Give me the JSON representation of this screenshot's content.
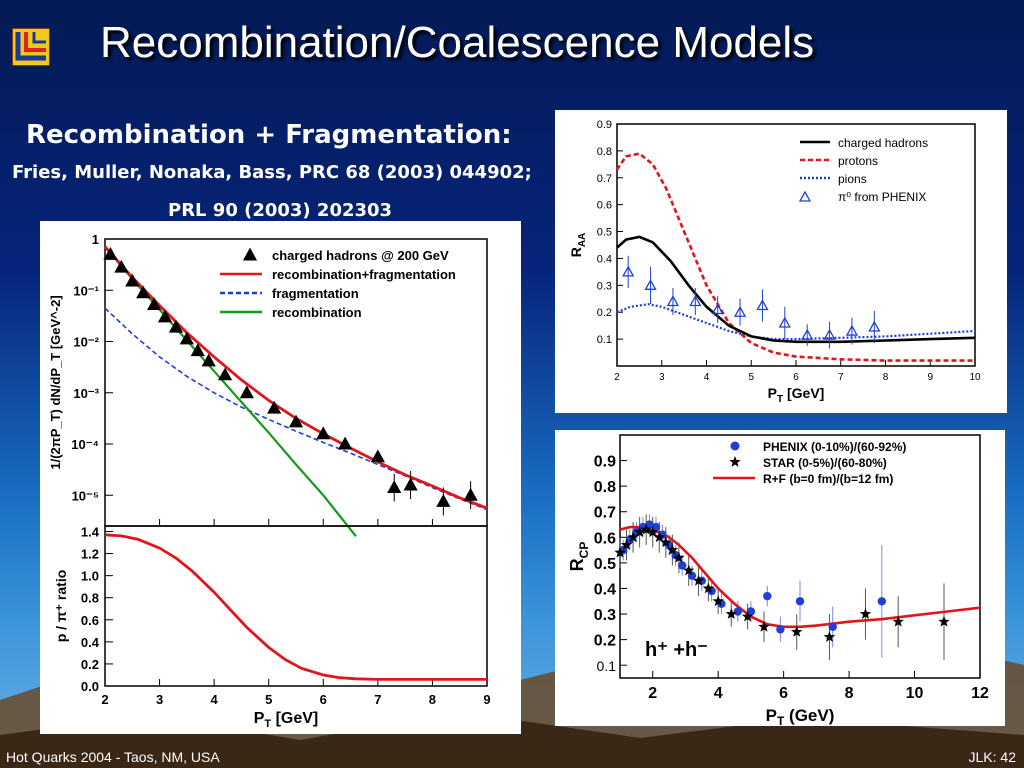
{
  "slide": {
    "title": "Recombination/Coalescence Models",
    "subtitle": "Recombination + Fragmentation:",
    "ref_line1": "Fries, Muller, Nonaka, Bass, PRC 68 (2003) 044902;",
    "ref_line2": "PRL 90 (2003) 202303",
    "footer_left": "Hot Quarks 2004 - Taos, NM, USA",
    "footer_right": "JLK: 42"
  },
  "colors": {
    "red": "#e0161b",
    "blue": "#1f3fd6",
    "green": "#139a1a",
    "black": "#000000"
  },
  "chart_data": [
    {
      "id": "spectrum",
      "type": "line",
      "xlabel": "P",
      "xlabel_sub": "T",
      "xlabel_unit": " [GeV]",
      "ylabel": "1/(2πP_T) dN/dP_T [GeV^-2]",
      "xlim": [
        2,
        9
      ],
      "ylim_log": [
        -5.6,
        0
      ],
      "yscale": "log",
      "xticks": [
        2,
        3,
        4,
        5,
        6,
        7,
        8,
        9
      ],
      "yticks": [
        "1",
        "10⁻¹",
        "10⁻²",
        "10⁻³",
        "10⁻⁴",
        "10⁻⁵"
      ],
      "legend": [
        "charged hadrons @ 200 GeV",
        "recombination+fragmentation",
        "fragmentation",
        "recombination"
      ],
      "series": [
        {
          "name": "charged hadrons @ 200 GeV",
          "style": "markers",
          "x": [
            2.1,
            2.3,
            2.5,
            2.7,
            2.9,
            3.1,
            3.3,
            3.5,
            3.7,
            3.9,
            4.2,
            4.6,
            5.1,
            5.5,
            6.0,
            6.4,
            7.0,
            7.3,
            7.6,
            8.2,
            8.7
          ],
          "y": [
            -0.3,
            -0.55,
            -0.82,
            -1.05,
            -1.28,
            -1.52,
            -1.72,
            -1.95,
            -2.18,
            -2.38,
            -2.65,
            -3.0,
            -3.3,
            -3.57,
            -3.8,
            -4.0,
            -4.25,
            -4.85,
            -4.8,
            -5.12,
            -5.0
          ]
        },
        {
          "name": "recombination+fragmentation",
          "style": "line",
          "x": [
            2.0,
            2.5,
            3.0,
            3.5,
            4.0,
            4.5,
            5.0,
            5.5,
            6.0,
            6.5,
            7.0,
            7.5,
            8.0,
            8.5,
            9.0
          ],
          "y": [
            -0.15,
            -0.75,
            -1.3,
            -1.83,
            -2.3,
            -2.75,
            -3.15,
            -3.5,
            -3.8,
            -4.08,
            -4.35,
            -4.6,
            -4.82,
            -5.05,
            -5.25
          ]
        },
        {
          "name": "fragmentation",
          "style": "dash",
          "x": [
            2.0,
            2.5,
            3.0,
            3.5,
            4.0,
            4.5,
            5.0,
            5.5,
            6.0,
            6.5,
            7.0,
            7.5,
            8.0,
            8.5,
            9.0
          ],
          "y": [
            -1.35,
            -1.85,
            -2.3,
            -2.68,
            -3.0,
            -3.28,
            -3.52,
            -3.75,
            -3.97,
            -4.18,
            -4.4,
            -4.62,
            -4.85,
            -5.07,
            -5.28
          ]
        },
        {
          "name": "recombination",
          "style": "line",
          "x": [
            2.0,
            2.5,
            3.0,
            3.5,
            4.0,
            4.5,
            5.0,
            5.5,
            6.0,
            6.6
          ],
          "y": [
            -0.15,
            -0.78,
            -1.38,
            -1.98,
            -2.58,
            -3.18,
            -3.78,
            -4.4,
            -5.0,
            -5.8
          ]
        }
      ]
    },
    {
      "id": "ratio",
      "type": "line",
      "xlabel": "P",
      "xlabel_sub": "T",
      "xlabel_unit": " [GeV]",
      "ylabel": "p / π⁺ ratio",
      "xlim": [
        2,
        9
      ],
      "ylim": [
        0,
        1.45
      ],
      "xticks": [
        2,
        3,
        4,
        5,
        6,
        7,
        8,
        9
      ],
      "yticks": [
        0.0,
        0.2,
        0.4,
        0.6,
        0.8,
        1.0,
        1.2,
        1.4
      ],
      "series": [
        {
          "name": "p/π⁺",
          "style": "line",
          "x": [
            2.0,
            2.3,
            2.6,
            3.0,
            3.3,
            3.6,
            4.0,
            4.3,
            4.6,
            5.0,
            5.3,
            5.6,
            6.0,
            6.3,
            6.6,
            7.0,
            8.0,
            9.0
          ],
          "y": [
            1.37,
            1.36,
            1.33,
            1.25,
            1.16,
            1.04,
            0.85,
            0.69,
            0.53,
            0.35,
            0.24,
            0.16,
            0.1,
            0.075,
            0.065,
            0.06,
            0.06,
            0.06
          ]
        }
      ]
    },
    {
      "id": "raa",
      "type": "line",
      "xlabel": "P",
      "xlabel_sub": "T",
      "xlabel_unit": " [GeV]",
      "ylabel": "R",
      "ylabel_sub": "AA",
      "xlim": [
        2,
        10
      ],
      "ylim": [
        0,
        0.9
      ],
      "xticks": [
        2,
        3,
        4,
        5,
        6,
        7,
        8,
        9,
        10
      ],
      "yticks": [
        0.1,
        0.2,
        0.3,
        0.4,
        0.5,
        0.6,
        0.7,
        0.8,
        0.9
      ],
      "legend": [
        "charged hadrons",
        "protons",
        "pions",
        "π⁰ from PHENIX"
      ],
      "series": [
        {
          "name": "charged hadrons",
          "style": "line",
          "x": [
            2.0,
            2.2,
            2.5,
            2.8,
            3.2,
            3.6,
            4.0,
            4.5,
            5.0,
            5.5,
            6.0,
            7.0,
            8.0,
            9.0,
            10.0
          ],
          "y": [
            0.44,
            0.47,
            0.48,
            0.46,
            0.39,
            0.3,
            0.22,
            0.15,
            0.11,
            0.095,
            0.09,
            0.09,
            0.095,
            0.1,
            0.105
          ]
        },
        {
          "name": "protons",
          "style": "dash",
          "x": [
            2.0,
            2.2,
            2.5,
            2.8,
            3.1,
            3.5,
            4.0,
            4.5,
            5.0,
            5.5,
            6.0,
            7.0,
            8.0,
            9.0,
            10.0
          ],
          "y": [
            0.73,
            0.78,
            0.79,
            0.75,
            0.66,
            0.5,
            0.3,
            0.16,
            0.085,
            0.05,
            0.035,
            0.025,
            0.02,
            0.02,
            0.02
          ]
        },
        {
          "name": "pions",
          "style": "dot",
          "x": [
            2.0,
            2.3,
            2.7,
            3.0,
            3.5,
            4.0,
            4.5,
            5.0,
            5.5,
            6.0,
            7.0,
            8.0,
            9.0,
            10.0
          ],
          "y": [
            0.2,
            0.22,
            0.23,
            0.22,
            0.19,
            0.16,
            0.13,
            0.11,
            0.1,
            0.1,
            0.105,
            0.11,
            0.12,
            0.13
          ]
        },
        {
          "name": "π⁰ from PHENIX",
          "style": "triangles",
          "x": [
            2.25,
            2.75,
            3.25,
            3.75,
            4.25,
            4.75,
            5.25,
            5.75,
            6.25,
            6.75,
            7.25,
            7.75
          ],
          "y": [
            0.35,
            0.3,
            0.24,
            0.24,
            0.21,
            0.2,
            0.225,
            0.16,
            0.115,
            0.115,
            0.13,
            0.145
          ],
          "err": [
            0.06,
            0.07,
            0.05,
            0.05,
            0.05,
            0.05,
            0.06,
            0.06,
            0.04,
            0.05,
            0.05,
            0.06
          ]
        }
      ]
    },
    {
      "id": "rcp",
      "type": "scatter",
      "xlabel": "P",
      "xlabel_sub": "T",
      "xlabel_unit": " (GeV)",
      "ylabel": "R",
      "ylabel_sub": "CP",
      "xlim": [
        1,
        12
      ],
      "ylim": [
        0.05,
        1.0
      ],
      "xticks": [
        2,
        4,
        6,
        8,
        10,
        12
      ],
      "yticks": [
        0.1,
        0.2,
        0.3,
        0.4,
        0.5,
        0.6,
        0.7,
        0.8,
        0.9
      ],
      "annotation": "h⁺ +h⁻",
      "legend": [
        "PHENIX (0-10%)/(60-92%)",
        "STAR (0-5%)/(60-80%)",
        "R+F (b=0 fm)/(b=12 fm)"
      ],
      "series": [
        {
          "name": "PHENIX (0-10%)/(60-92%)",
          "style": "dots",
          "x": [
            1.1,
            1.3,
            1.5,
            1.7,
            1.9,
            2.1,
            2.3,
            2.5,
            2.7,
            2.9,
            3.2,
            3.5,
            3.8,
            4.1,
            4.6,
            5.0,
            5.5,
            5.9,
            6.5,
            7.5,
            9.0
          ],
          "y": [
            0.55,
            0.59,
            0.62,
            0.64,
            0.65,
            0.64,
            0.61,
            0.57,
            0.53,
            0.49,
            0.45,
            0.43,
            0.39,
            0.34,
            0.31,
            0.31,
            0.37,
            0.24,
            0.35,
            0.25,
            0.35
          ],
          "err": [
            0.04,
            0.04,
            0.04,
            0.04,
            0.04,
            0.04,
            0.04,
            0.04,
            0.04,
            0.04,
            0.04,
            0.04,
            0.04,
            0.04,
            0.04,
            0.04,
            0.04,
            0.05,
            0.08,
            0.08,
            0.22
          ]
        },
        {
          "name": "STAR (0-5%)/(60-80%)",
          "style": "stars",
          "x": [
            1.0,
            1.2,
            1.4,
            1.6,
            1.8,
            2.0,
            2.2,
            2.4,
            2.6,
            2.8,
            3.1,
            3.4,
            3.7,
            4.0,
            4.4,
            4.9,
            5.4,
            6.4,
            7.4,
            8.5,
            9.5,
            10.9
          ],
          "y": [
            0.54,
            0.57,
            0.6,
            0.62,
            0.63,
            0.62,
            0.6,
            0.58,
            0.55,
            0.52,
            0.47,
            0.43,
            0.4,
            0.35,
            0.3,
            0.29,
            0.25,
            0.23,
            0.21,
            0.3,
            0.27,
            0.27
          ],
          "err": [
            0.06,
            0.06,
            0.06,
            0.06,
            0.06,
            0.06,
            0.06,
            0.06,
            0.06,
            0.06,
            0.06,
            0.06,
            0.05,
            0.05,
            0.05,
            0.05,
            0.06,
            0.07,
            0.09,
            0.1,
            0.1,
            0.15
          ]
        },
        {
          "name": "R+F (b=0 fm)/(b=12 fm)",
          "style": "line",
          "x": [
            1.0,
            1.3,
            1.6,
            1.9,
            2.2,
            2.5,
            2.8,
            3.2,
            3.6,
            4.0,
            4.5,
            5.0,
            5.5,
            6.0,
            6.5,
            7.0,
            8.0,
            9.0,
            10.0,
            11.0,
            12.0
          ],
          "y": [
            0.63,
            0.64,
            0.64,
            0.63,
            0.62,
            0.6,
            0.57,
            0.52,
            0.46,
            0.4,
            0.34,
            0.29,
            0.26,
            0.25,
            0.25,
            0.255,
            0.27,
            0.28,
            0.295,
            0.31,
            0.325
          ]
        }
      ]
    }
  ]
}
